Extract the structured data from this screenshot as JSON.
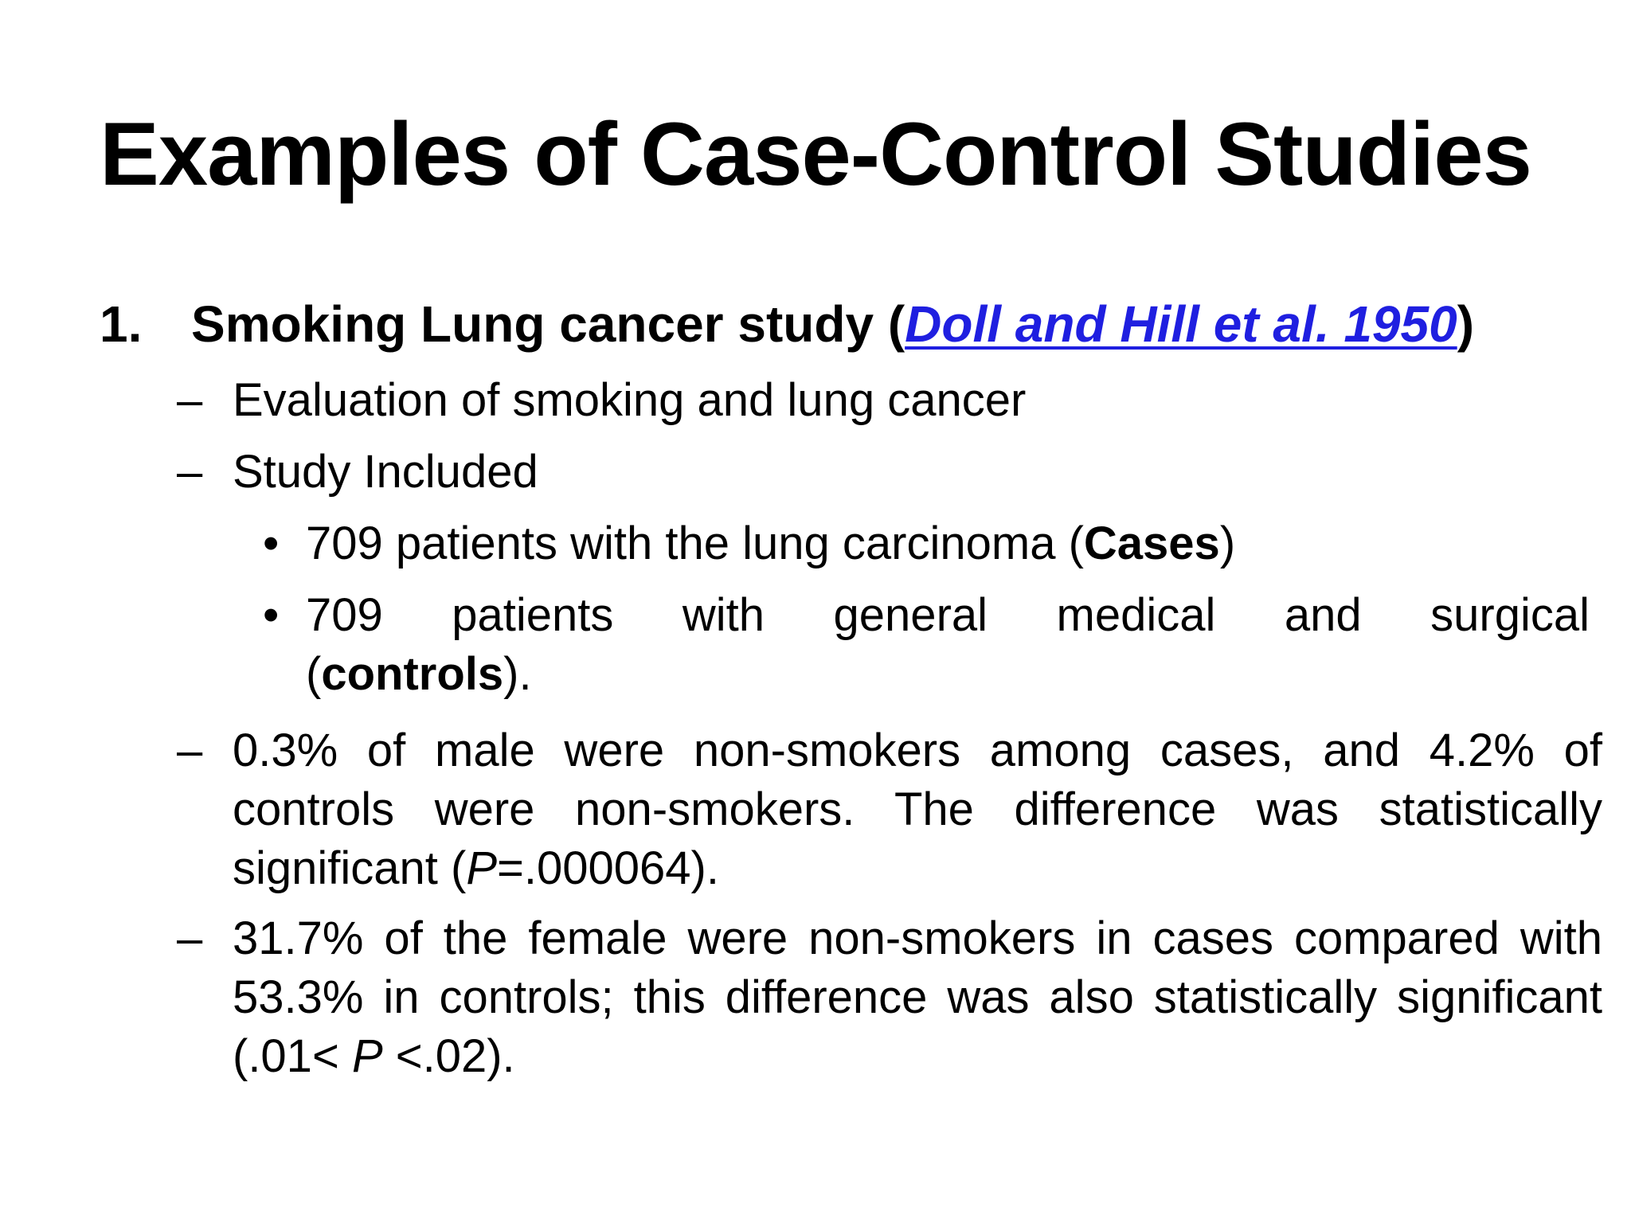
{
  "slide": {
    "title": "Examples of Case-Control Studies",
    "item1": {
      "number": "1.",
      "heading": "Smoking Lung cancer study (",
      "reference_link": "Doll and Hill et al. 1950",
      "heading_close": ")"
    },
    "dash_items": [
      {
        "marker": "–",
        "text": "Evaluation of smoking and lung cancer"
      },
      {
        "marker": "–",
        "text": "Study Included"
      }
    ],
    "bullets": [
      {
        "marker": "•",
        "pre": "709  patients with the lung carcinoma (",
        "bold": "Cases",
        "post": ")"
      },
      {
        "marker": "•",
        "line1": "709 patients with general medical and surgical",
        "pre": "(",
        "bold": "controls",
        "post": ")."
      }
    ],
    "finding1": {
      "marker": "–",
      "pre": "0.3% of male were non-smokers among cases, and 4.2% of controls were non-smokers. The difference was statistically significant (",
      "italic": "P",
      "post": "=.000064)."
    },
    "finding2": {
      "marker": "–",
      "pre": "31.7% of the female were non-smokers in cases compared with 53.3% in controls; this difference was also statistically significant (.01< ",
      "italic": "P",
      "post": " <.02)."
    }
  }
}
